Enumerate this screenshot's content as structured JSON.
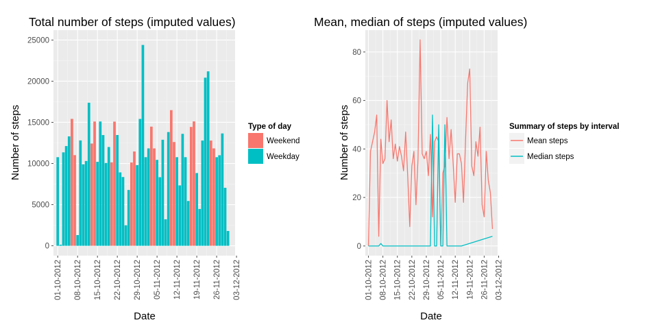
{
  "chart_data": [
    {
      "type": "bar",
      "title": "Total number of steps (imputed values)",
      "xlabel": "Date",
      "ylabel": "Number of steps",
      "x_ticks": [
        "01-10-2012",
        "08-10-2012",
        "15-10-2012",
        "22-10-2012",
        "29-10-2012",
        "05-11-2012",
        "12-11-2012",
        "19-11-2012",
        "26-11-2012",
        "03-12-2012"
      ],
      "y_ticks": [
        0,
        5000,
        10000,
        15000,
        20000,
        25000
      ],
      "ylim": [
        -1200,
        26200
      ],
      "xlim_days": [
        -1.5,
        62.5
      ],
      "grid": true,
      "legend": {
        "title": "Type of day",
        "position": "right",
        "entries": [
          {
            "name": "Weekend",
            "color": "#F8766D"
          },
          {
            "name": "Weekday",
            "color": "#00BFC4"
          }
        ]
      },
      "series": [
        {
          "name": "Weekend",
          "color": "#F8766D",
          "x": [
            5,
            6,
            12,
            13,
            19,
            20,
            26,
            27,
            33,
            34,
            40,
            41,
            47,
            48,
            54,
            55
          ],
          "values": [
            15420,
            11015,
            12426,
            15098,
            10139,
            15084,
            10119,
            11458,
            14478,
            11834,
            16480,
            12608,
            14440,
            15110,
            12787,
            11834
          ]
        },
        {
          "name": "Weekday",
          "color": "#00BFC4",
          "x": [
            0,
            1,
            2,
            3,
            4,
            7,
            8,
            9,
            10,
            11,
            14,
            15,
            16,
            17,
            18,
            21,
            22,
            23,
            24,
            25,
            28,
            29,
            30,
            31,
            32,
            35,
            36,
            37,
            38,
            39,
            42,
            43,
            44,
            45,
            46,
            49,
            50,
            51,
            52,
            53,
            56,
            57,
            58,
            59,
            60
          ],
          "values": [
            10766,
            126,
            11352,
            12116,
            13294,
            1300,
            12800,
            9900,
            10304,
            17382,
            10200,
            15100,
            13452,
            10056,
            12000,
            13460,
            8918,
            8355,
            2492,
            6778,
            9800,
            15414,
            24400,
            10766,
            11834,
            10439,
            8334,
            12883,
            3219,
            13818,
            10766,
            7336,
            13600,
            10766,
            5441,
            8841,
            4472,
            12787,
            20427,
            21194,
            10765,
            11000,
            13650,
            7047,
            1800
          ]
        }
      ]
    },
    {
      "type": "line",
      "title": "Mean, median of steps (imputed values)",
      "xlabel": "Date",
      "ylabel": "Number of steps",
      "x_ticks": [
        "01-10-2012",
        "08-10-2012",
        "15-10-2012",
        "22-10-2012",
        "29-10-2012",
        "05-11-2012",
        "12-11-2012",
        "19-11-2012",
        "26-11-2012",
        "03-12-2012"
      ],
      "y_ticks": [
        0,
        20,
        40,
        60,
        80
      ],
      "ylim": [
        -4,
        89
      ],
      "xlim_days": [
        -1.5,
        62.5
      ],
      "grid": true,
      "legend": {
        "title": "Summary of steps by interval",
        "position": "right",
        "entries": [
          {
            "name": "Mean steps",
            "color": "#F8766D"
          },
          {
            "name": "Median steps",
            "color": "#00BFC4"
          }
        ]
      },
      "series": [
        {
          "name": "Mean steps",
          "color": "#F8766D",
          "x": [
            0,
            1,
            2,
            3,
            4,
            5,
            6,
            7,
            8,
            9,
            10,
            11,
            12,
            13,
            14,
            15,
            16,
            17,
            18,
            19,
            20,
            21,
            22,
            23,
            24,
            25,
            26,
            27,
            28,
            29,
            30,
            31,
            32,
            33,
            34,
            35,
            36,
            37,
            38,
            39,
            40,
            41,
            42,
            43,
            44,
            45,
            46,
            47,
            48,
            49,
            50,
            51,
            52,
            53,
            54,
            55,
            56,
            57,
            58,
            59,
            60
          ],
          "values": [
            0,
            39,
            43,
            47,
            54,
            4,
            44,
            34,
            36,
            60,
            43,
            52,
            36,
            42,
            35,
            41,
            37,
            31,
            47,
            29,
            8,
            33,
            39,
            17,
            36,
            85,
            38,
            36,
            39,
            29,
            46,
            12,
            43,
            45,
            43,
            0,
            30,
            33,
            53,
            36,
            48,
            34,
            18,
            38,
            38,
            34,
            18,
            44,
            67,
            73,
            33,
            29,
            43,
            37,
            49,
            17,
            12,
            39,
            27,
            22,
            7
          ],
          "note": ""
        },
        {
          "name": "Median steps",
          "color": "#00BFC4",
          "x": [
            0,
            5,
            6,
            7,
            22,
            23,
            24,
            30,
            31,
            32,
            33,
            34,
            35,
            36,
            37,
            38,
            39,
            40,
            41,
            42,
            43,
            44,
            45,
            60
          ],
          "values": [
            0,
            0,
            1,
            0,
            0,
            0,
            0,
            0,
            54,
            0,
            0,
            50,
            0,
            0,
            50,
            0,
            0,
            0,
            0,
            0,
            0,
            0,
            0,
            4
          ]
        }
      ]
    }
  ]
}
